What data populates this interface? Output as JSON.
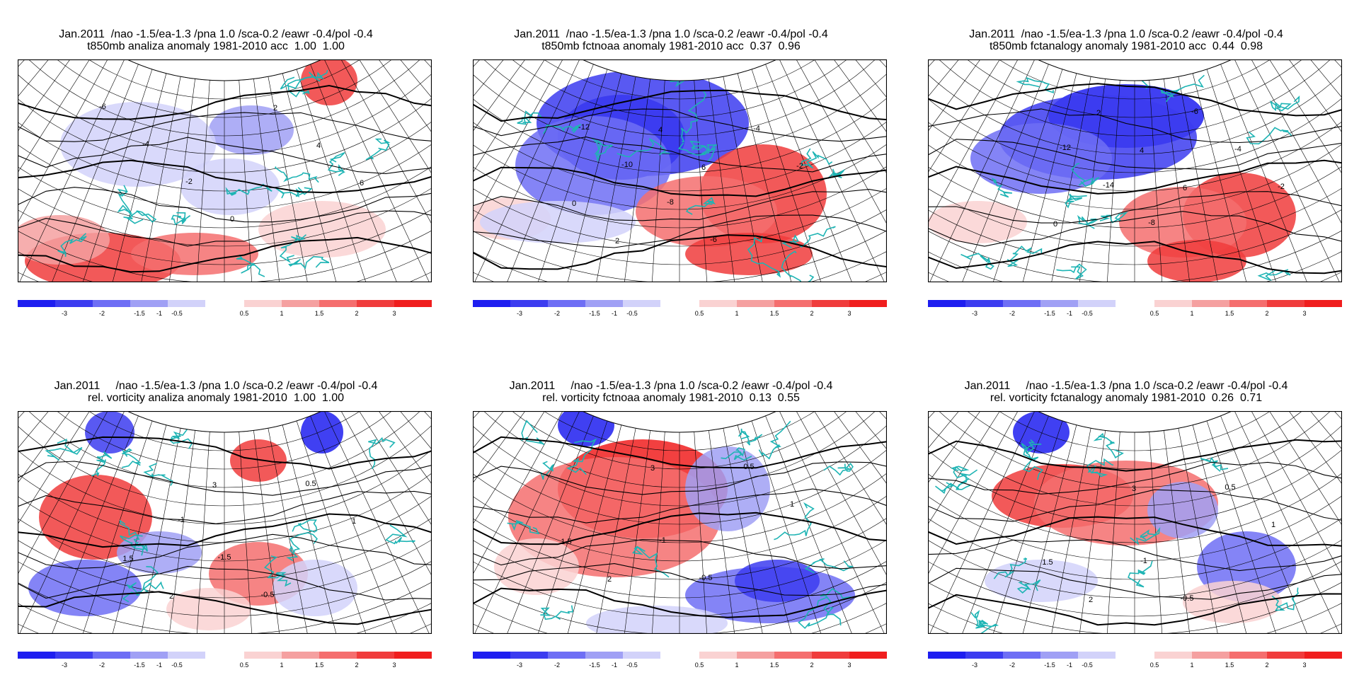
{
  "panels": [
    {
      "id": "p1",
      "title_line1": "Jan.2011  /nao -1.5/ea-1.3 /pna 1.0 /sca-0.2 /eawr -0.4/pol -0.4",
      "title_line2": "t850mb analiza anomaly 1981-2010 acc  1.00  1.00",
      "contour_labels": [
        "-6",
        "-4",
        "-2",
        "0",
        "2",
        "4",
        "6"
      ]
    },
    {
      "id": "p2",
      "title_line1": "Jan.2011  /nao -1.5/ea-1.3 /pna 1.0 /sca-0.2 /eawr -0.4/pol -0.4",
      "title_line2": "t850mb fctnoaa anomaly 1981-2010 acc  0.37  0.96",
      "contour_labels": [
        "-12",
        "-10",
        "-8",
        "-6",
        "-4",
        "-2",
        "0",
        "2",
        "4",
        "6"
      ]
    },
    {
      "id": "p3",
      "title_line1": "Jan.2011  /nao -1.5/ea-1.3 /pna 1.0 /sca-0.2 /eawr -0.4/pol -0.4",
      "title_line2": "t850mb fctanalogy anomaly 1981-2010 acc  0.44  0.98",
      "contour_labels": [
        "-12",
        "-14",
        "-8",
        "-6",
        "-4",
        "-2",
        "0",
        "2",
        "4",
        "6"
      ]
    },
    {
      "id": "p4",
      "title_line1": "Jan.2011     /nao -1.5/ea-1.3 /pna 1.0 /sca-0.2 /eawr -0.4/pol -0.4",
      "title_line2": "rel. vorticity analiza anomaly 1981-2010  1.00  1.00",
      "contour_labels": [
        "-1",
        "-1.5",
        "-0.5",
        "0.5",
        "1",
        "1.5",
        "2",
        "3"
      ]
    },
    {
      "id": "p5",
      "title_line1": "Jan.2011     /nao -1.5/ea-1.3 /pna 1.0 /sca-0.2 /eawr -0.4/pol -0.4",
      "title_line2": "rel. vorticity fctnoaa anomaly 1981-2010  0.13  0.55",
      "contour_labels": [
        "-1",
        "-0.5",
        "0.5",
        "1",
        "1.5",
        "2",
        "3"
      ]
    },
    {
      "id": "p6",
      "title_line1": "Jan.2011     /nao -1.5/ea-1.3 /pna 1.0 /sca-0.2 /eawr -0.4/pol -0.4",
      "title_line2": "rel. vorticity fctanalogy anomaly 1981-2010  0.26  0.71",
      "contour_labels": [
        "-1",
        "-0.5",
        "0.5",
        "1",
        "1.5",
        "2",
        "3"
      ]
    }
  ],
  "colorbar": {
    "ticks": [
      "-3",
      "-2",
      "-1.5",
      "-1",
      "-0.5",
      "0.5",
      "1",
      "1.5",
      "2",
      "3"
    ],
    "negative_colors": [
      "#1e1ef0",
      "#3c3cf0",
      "#6e6ef5",
      "#a0a0f5",
      "#d2d2fa"
    ],
    "positive_colors": [
      "#fad2d2",
      "#f5a0a0",
      "#f56e6e",
      "#f03c3c",
      "#f01e1e"
    ]
  },
  "colors": {
    "coast": "#1eb4b4",
    "contour": "#000000",
    "grid": "#000000"
  }
}
